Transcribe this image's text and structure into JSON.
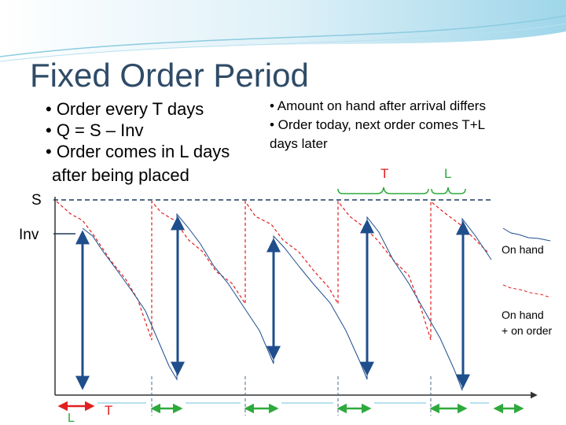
{
  "title": "Fixed Order Period",
  "left_bullets": [
    "• Order every T days",
    "• Q = S – Inv",
    "• Order comes in L days",
    "after being placed"
  ],
  "right_bullets": [
    "• Amount on hand after arrival differs",
    "• Order today, next order comes T+L",
    "days later"
  ],
  "axis_labels": {
    "s": "S",
    "inv": "Inv"
  },
  "brackets": {
    "t": "T",
    "l": "L"
  },
  "legend": [
    {
      "lines": [
        "On hand"
      ]
    },
    {
      "lines": [
        "On hand",
        "+ on order"
      ]
    }
  ],
  "bottom_labels": {
    "l": "L",
    "t": "T"
  }
}
